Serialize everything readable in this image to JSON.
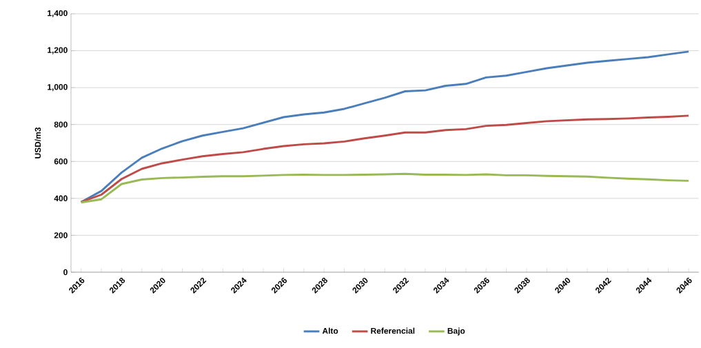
{
  "chart_data": {
    "type": "line",
    "ylabel": "USD/m3",
    "categories": [
      "2016",
      null,
      "2018",
      null,
      "2020",
      null,
      "2022",
      null,
      "2024",
      null,
      "2026",
      null,
      "2028",
      null,
      "2030",
      null,
      "2032",
      null,
      "2034",
      null,
      "2036",
      null,
      "2038",
      null,
      "2040",
      null,
      "2042",
      null,
      "2044",
      null,
      "2046"
    ],
    "series": [
      {
        "name": "Alto",
        "color": "#4a7ebb",
        "values": [
          380,
          440,
          540,
          620,
          670,
          710,
          740,
          760,
          780,
          810,
          840,
          855,
          865,
          885,
          915,
          945,
          980,
          985,
          1010,
          1020,
          1055,
          1065,
          1085,
          1105,
          1120,
          1135,
          1145,
          1155,
          1165,
          1180,
          1195
        ]
      },
      {
        "name": "Referencial",
        "color": "#be4b48",
        "values": [
          380,
          420,
          505,
          560,
          590,
          610,
          628,
          640,
          650,
          668,
          683,
          693,
          698,
          708,
          725,
          740,
          757,
          757,
          770,
          775,
          793,
          798,
          808,
          818,
          823,
          828,
          830,
          833,
          838,
          842,
          848
        ]
      },
      {
        "name": "Bajo",
        "color": "#98b954",
        "values": [
          378,
          395,
          478,
          502,
          510,
          513,
          517,
          520,
          520,
          523,
          527,
          528,
          527,
          527,
          528,
          530,
          533,
          528,
          528,
          527,
          530,
          525,
          525,
          522,
          520,
          518,
          512,
          507,
          503,
          498,
          495
        ]
      }
    ],
    "ylim": [
      0,
      1400
    ],
    "yticks": [
      0,
      200,
      400,
      600,
      800,
      {
        "value": 1000,
        "label": "1,000"
      },
      {
        "value": 1200,
        "label": "1,200"
      },
      {
        "value": 1400,
        "label": "1,400"
      }
    ],
    "grid": "y",
    "legend": "bottom",
    "marker": "none",
    "line_style": "solid"
  }
}
